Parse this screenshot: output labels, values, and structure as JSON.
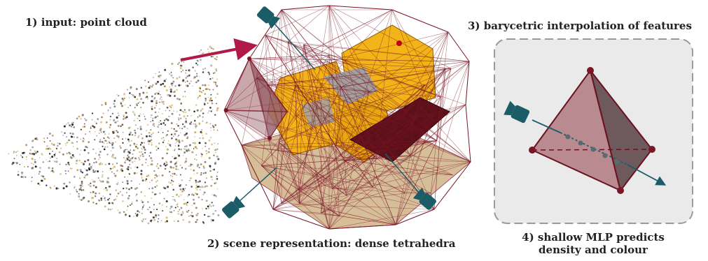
{
  "labels": {
    "step1": "1) input: point cloud",
    "step2": "2) scene representation: dense tetrahedra",
    "step3": "3) barycetric interpolation of  features",
    "step4_line1": "4) shallow MLP predicts",
    "step4_line2": "density and colour"
  },
  "colors": {
    "wire": "#7a1626",
    "tetra_fill": "#b98a8f",
    "camera": "#1c5c66",
    "arrow": "#b01a48",
    "panel_bg": "#eaeaea",
    "panel_border": "#9a9a9a",
    "mesh_yellow": "#f2b418",
    "ground": "#c9a978"
  },
  "icons": [
    "camera-icon",
    "arrow-icon",
    "tetrahedron-icon"
  ]
}
